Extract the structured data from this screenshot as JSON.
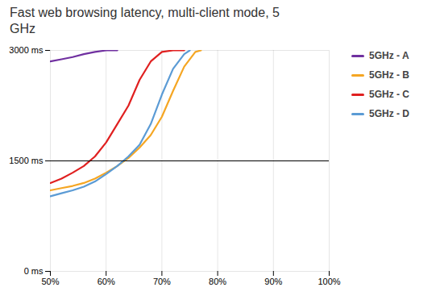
{
  "chart_data": {
    "type": "line",
    "title": "Fast web browsing latency, multi-client mode, 5\nGHz",
    "series": [
      {
        "name": "5GHz - A",
        "color": "#7030a0",
        "x": [
          50,
          52,
          54,
          56,
          58,
          60,
          62
        ],
        "values": [
          2850,
          2880,
          2910,
          2950,
          2980,
          3000,
          3000
        ]
      },
      {
        "name": "5GHz - B",
        "color": "#f5a623",
        "x": [
          50,
          52,
          54,
          56,
          58,
          60,
          62,
          64,
          66,
          68,
          70,
          72,
          74,
          76,
          77
        ],
        "values": [
          1100,
          1130,
          1160,
          1200,
          1260,
          1340,
          1430,
          1540,
          1680,
          1850,
          2100,
          2450,
          2780,
          2980,
          3000
        ]
      },
      {
        "name": "5GHz - C",
        "color": "#e02020",
        "x": [
          50,
          52,
          54,
          56,
          58,
          60,
          62,
          64,
          66,
          68,
          70,
          72,
          74
        ],
        "values": [
          1200,
          1260,
          1340,
          1430,
          1560,
          1750,
          2000,
          2250,
          2600,
          2850,
          2980,
          3000,
          3000
        ]
      },
      {
        "name": "5GHz - D",
        "color": "#5b9bd5",
        "x": [
          50,
          52,
          54,
          56,
          58,
          60,
          62,
          64,
          66,
          68,
          70,
          72,
          74,
          75
        ],
        "values": [
          1020,
          1060,
          1100,
          1150,
          1220,
          1320,
          1430,
          1560,
          1720,
          2000,
          2400,
          2750,
          2950,
          3000
        ]
      }
    ],
    "xlim": [
      50,
      100
    ],
    "xticks": [
      {
        "value": 50,
        "label": "50%"
      },
      {
        "value": 60,
        "label": "60%"
      },
      {
        "value": 70,
        "label": "70%"
      },
      {
        "value": 80,
        "label": "80%"
      },
      {
        "value": 90,
        "label": "90%"
      },
      {
        "value": 100,
        "label": "100%"
      }
    ],
    "ylim": [
      0,
      3000
    ],
    "yticks": [
      {
        "value": 0,
        "label": "0 ms"
      },
      {
        "value": 1500,
        "label": "1500 ms"
      },
      {
        "value": 3000,
        "label": "3000 ms"
      }
    ],
    "reference_line": {
      "y": 1500,
      "color": "#000000"
    },
    "grid": true,
    "legend": "right"
  }
}
